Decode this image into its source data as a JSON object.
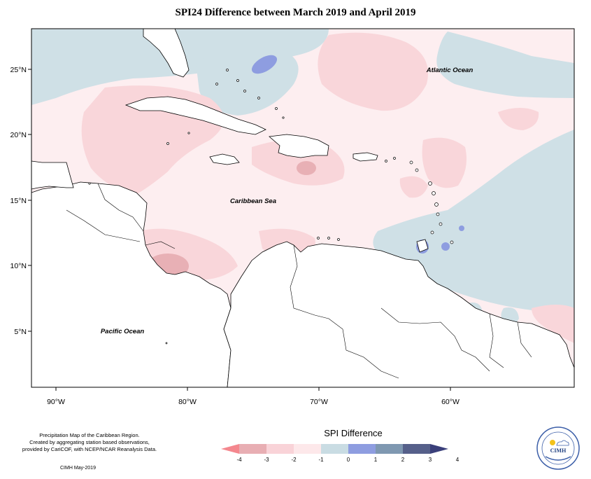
{
  "title": "SPI24 Difference between March 2019 and April 2019",
  "map": {
    "lat_ticks": [
      "25°N",
      "20°N",
      "15°N",
      "10°N",
      "5°N"
    ],
    "lon_ticks": [
      "90°W",
      "80°W",
      "70°W",
      "60°W"
    ],
    "labels": {
      "atlantic": "Atlantic Ocean",
      "caribbean": "Caribbean Sea",
      "pacific": "Pacific Ocean"
    }
  },
  "footnote": {
    "line1": "Precipitation Map of the Caribbean Region.",
    "line2": "Created by aggregating station based observations,",
    "line3": "provided by CariCOF, with NCEP/NCAR Reanalysis Data."
  },
  "credit": "CIMH May-2019",
  "legend": {
    "title": "SPI Difference",
    "ticks": [
      "-4",
      "-3",
      "-2",
      "-1",
      "0",
      "1",
      "2",
      "3",
      "4"
    ],
    "colors": [
      "#f4878e",
      "#e8aeb3",
      "#f9d3d8",
      "#fde8ea",
      "#c9dce3",
      "#8e9de0",
      "#7f98b1",
      "#56608a",
      "#3a3f7a"
    ]
  },
  "logo": {
    "text": "CIMH"
  }
}
